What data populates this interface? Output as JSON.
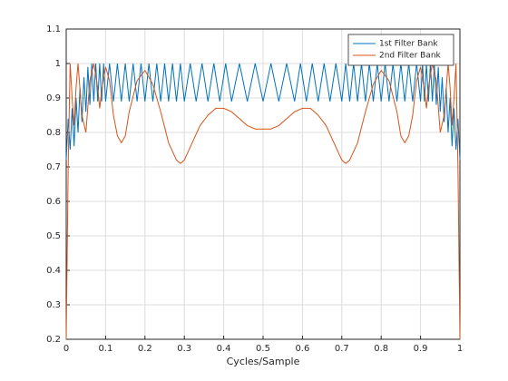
{
  "chart_data": {
    "type": "line",
    "xlabel": "Cycles/Sample",
    "xlim": [
      0,
      1
    ],
    "xticks": [
      0,
      0.1,
      0.2,
      0.3,
      0.4,
      0.5,
      0.6,
      0.7,
      0.8,
      0.9,
      1
    ],
    "ylim": [
      0.2,
      1.1
    ],
    "yticks": [
      0.2,
      0.3,
      0.4,
      0.5,
      0.6,
      0.7,
      0.8,
      0.9,
      1,
      1.1
    ],
    "grid": true,
    "legend": "northeast",
    "series": [
      {
        "name": "1st Filter Bank",
        "color": "#0072BD",
        "x": [
          0,
          0.005,
          0.01,
          0.015,
          0.02,
          0.025,
          0.03,
          0.035,
          0.04,
          0.045,
          0.05,
          0.055,
          0.06,
          0.065,
          0.07,
          0.075,
          0.08,
          0.085,
          0.09,
          0.095,
          0.1,
          0.11,
          0.12,
          0.13,
          0.14,
          0.15,
          0.16,
          0.17,
          0.18,
          0.19,
          0.2,
          0.21,
          0.22,
          0.23,
          0.24,
          0.25,
          0.26,
          0.27,
          0.28,
          0.29,
          0.3,
          0.315,
          0.33,
          0.345,
          0.36,
          0.375,
          0.39,
          0.405,
          0.42,
          0.44,
          0.46,
          0.48,
          0.5,
          0.52,
          0.54,
          0.56,
          0.58,
          0.595,
          0.61,
          0.625,
          0.64,
          0.655,
          0.67,
          0.685,
          0.7,
          0.71,
          0.72,
          0.73,
          0.74,
          0.75,
          0.76,
          0.77,
          0.78,
          0.79,
          0.8,
          0.81,
          0.82,
          0.83,
          0.84,
          0.85,
          0.86,
          0.87,
          0.88,
          0.89,
          0.9,
          0.905,
          0.91,
          0.915,
          0.92,
          0.925,
          0.93,
          0.935,
          0.94,
          0.945,
          0.95,
          0.955,
          0.96,
          0.965,
          0.97,
          0.975,
          0.98,
          0.985,
          0.99,
          0.995,
          1
        ],
        "values": [
          0.72,
          0.84,
          0.75,
          0.87,
          0.76,
          0.9,
          0.8,
          0.93,
          0.83,
          0.96,
          0.86,
          0.99,
          0.88,
          1,
          0.89,
          1,
          0.89,
          1,
          0.89,
          1,
          0.89,
          1,
          0.89,
          1,
          0.89,
          1,
          0.89,
          1,
          0.89,
          1,
          0.89,
          1,
          0.89,
          1,
          0.89,
          1,
          0.89,
          1,
          0.89,
          1,
          0.89,
          1,
          0.89,
          1,
          0.89,
          1,
          0.89,
          1,
          0.89,
          1,
          0.89,
          1,
          0.89,
          1,
          0.89,
          1,
          0.89,
          1,
          0.89,
          1,
          0.89,
          1,
          0.89,
          1,
          0.89,
          1,
          0.89,
          1,
          0.89,
          1,
          0.89,
          1,
          0.89,
          1,
          0.89,
          1,
          0.89,
          1,
          0.89,
          1,
          0.89,
          1,
          0.89,
          1,
          0.89,
          1,
          0.89,
          1,
          0.89,
          1,
          0.89,
          1,
          0.88,
          0.99,
          0.86,
          0.96,
          0.83,
          0.93,
          0.8,
          0.9,
          0.76,
          0.87,
          0.75,
          0.84,
          0.72
        ]
      },
      {
        "name": "2nd Filter Bank",
        "color": "#D95319",
        "x": [
          0,
          0.005,
          0.01,
          0.015,
          0.02,
          0.025,
          0.03,
          0.04,
          0.05,
          0.06,
          0.07,
          0.08,
          0.085,
          0.09,
          0.1,
          0.11,
          0.12,
          0.13,
          0.14,
          0.15,
          0.16,
          0.18,
          0.2,
          0.22,
          0.24,
          0.26,
          0.28,
          0.29,
          0.3,
          0.32,
          0.34,
          0.36,
          0.38,
          0.4,
          0.42,
          0.44,
          0.46,
          0.48,
          0.5,
          0.52,
          0.54,
          0.56,
          0.58,
          0.6,
          0.62,
          0.64,
          0.66,
          0.68,
          0.7,
          0.71,
          0.72,
          0.74,
          0.76,
          0.78,
          0.8,
          0.82,
          0.84,
          0.85,
          0.86,
          0.87,
          0.88,
          0.89,
          0.9,
          0.91,
          0.915,
          0.92,
          0.93,
          0.94,
          0.95,
          0.96,
          0.97,
          0.975,
          0.98,
          0.985,
          0.99,
          0.995,
          1
        ],
        "values": [
          0.2,
          0.7,
          1,
          0.9,
          0.82,
          0.93,
          1,
          0.85,
          0.8,
          0.95,
          1,
          0.93,
          0.87,
          0.92,
          0.99,
          0.95,
          0.85,
          0.79,
          0.77,
          0.79,
          0.86,
          0.95,
          0.98,
          0.94,
          0.86,
          0.77,
          0.72,
          0.71,
          0.72,
          0.77,
          0.82,
          0.85,
          0.87,
          0.87,
          0.86,
          0.84,
          0.82,
          0.81,
          0.81,
          0.81,
          0.82,
          0.84,
          0.86,
          0.87,
          0.87,
          0.85,
          0.82,
          0.77,
          0.72,
          0.71,
          0.72,
          0.77,
          0.86,
          0.94,
          0.98,
          0.95,
          0.86,
          0.79,
          0.77,
          0.79,
          0.85,
          0.95,
          0.99,
          0.92,
          0.87,
          0.93,
          1,
          0.95,
          0.8,
          0.85,
          1,
          0.93,
          0.82,
          0.9,
          1,
          0.7,
          0.2
        ]
      }
    ]
  }
}
